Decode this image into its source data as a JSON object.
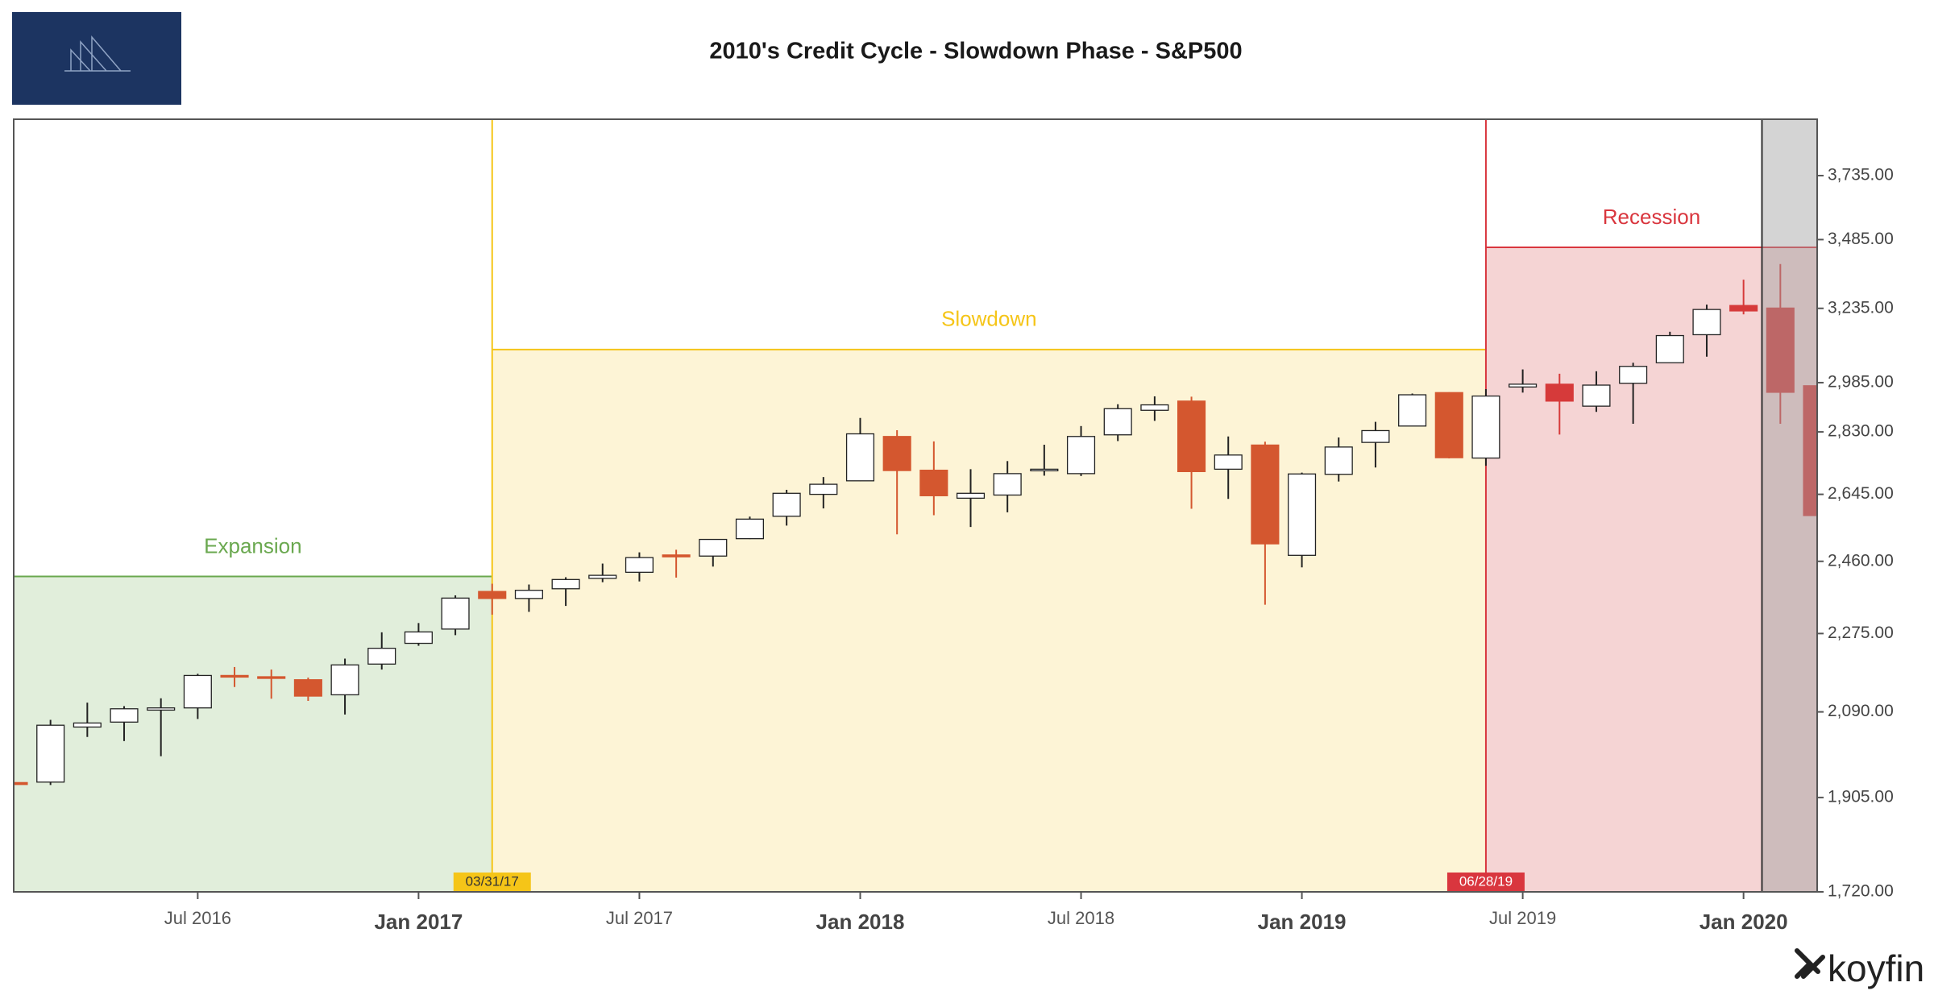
{
  "chart_data": {
    "type": "candlestick",
    "title": "2010's Credit Cycle - Slowdown Phase - S&P500",
    "brand": "koyfin",
    "x": [
      "2016-02",
      "2016-03",
      "2016-04",
      "2016-05",
      "2016-06",
      "2016-07",
      "2016-08",
      "2016-09",
      "2016-10",
      "2016-11",
      "2016-12",
      "2017-01",
      "2017-02",
      "2017-03",
      "2017-04",
      "2017-05",
      "2017-06",
      "2017-07",
      "2017-08",
      "2017-09",
      "2017-10",
      "2017-11",
      "2017-12",
      "2018-01",
      "2018-02",
      "2018-03",
      "2018-04",
      "2018-05",
      "2018-06",
      "2018-07",
      "2018-08",
      "2018-09",
      "2018-10",
      "2018-11",
      "2018-12",
      "2019-01",
      "2019-02",
      "2019-03",
      "2019-04",
      "2019-05",
      "2019-06",
      "2019-07",
      "2019-08",
      "2019-09",
      "2019-10",
      "2019-11",
      "2019-12",
      "2020-01",
      "2020-02",
      "2020-03"
    ],
    "open": [
      1936,
      1937,
      2056,
      2067,
      2094,
      2099,
      2174,
      2171,
      2164,
      2129,
      2201,
      2251,
      2286,
      2381,
      2363,
      2388,
      2415,
      2431,
      2477,
      2474,
      2521,
      2583,
      2645,
      2684,
      2816,
      2715,
      2634,
      2643,
      2718,
      2705,
      2821,
      2897,
      2926,
      2718,
      2790,
      2476,
      2703,
      2798,
      2848,
      2953,
      2751,
      2971,
      2980,
      2910,
      2983,
      3050,
      3144,
      3245,
      3236,
      2975
    ],
    "high": [
      1962,
      2072,
      2111,
      2103,
      2121,
      2178,
      2194,
      2188,
      2169,
      2214,
      2278,
      2301,
      2371,
      2401,
      2399,
      2418,
      2454,
      2484,
      2491,
      2520,
      2582,
      2658,
      2695,
      2873,
      2835,
      2801,
      2718,
      2742,
      2791,
      2848,
      2916,
      2941,
      2940,
      2816,
      2800,
      2708,
      2813,
      2861,
      2950,
      2954,
      2964,
      3028,
      3014,
      3022,
      3050,
      3154,
      3248,
      3337,
      3394,
      3137
    ],
    "low": [
      1810,
      1931,
      2034,
      2025,
      1992,
      2074,
      2147,
      2120,
      2115,
      2084,
      2188,
      2245,
      2271,
      2322,
      2329,
      2344,
      2405,
      2407,
      2417,
      2446,
      2520,
      2557,
      2605,
      2683,
      2533,
      2586,
      2553,
      2594,
      2699,
      2698,
      2802,
      2864,
      2604,
      2632,
      2347,
      2444,
      2682,
      2723,
      2848,
      2750,
      2728,
      2953,
      2822,
      2892,
      2855,
      3050,
      3070,
      3214,
      2855,
      2192
    ],
    "close": [
      1932,
      2060,
      2065,
      2097,
      2099,
      2174,
      2171,
      2168,
      2126,
      2199,
      2239,
      2279,
      2364,
      2363,
      2384,
      2412,
      2423,
      2470,
      2472,
      2519,
      2575,
      2648,
      2674,
      2824,
      2714,
      2641,
      2648,
      2705,
      2718,
      2816,
      2902,
      2914,
      2711,
      2760,
      2507,
      2704,
      2784,
      2834,
      2946,
      2752,
      2942,
      2980,
      2926,
      2977,
      3038,
      3141,
      3231,
      3226,
      2954,
      2585
    ],
    "up_color": "#ffffff",
    "down_color": "#d4572f",
    "log_scale": true,
    "xlim": [
      "2016-02",
      "2020-03"
    ],
    "ylim": [
      1720,
      3970
    ],
    "yticks": [
      {
        "value": 1720,
        "label": "1,720.00"
      },
      {
        "value": 1905,
        "label": "1,905.00"
      },
      {
        "value": 2090,
        "label": "2,090.00"
      },
      {
        "value": 2275,
        "label": "2,275.00"
      },
      {
        "value": 2460,
        "label": "2,460.00"
      },
      {
        "value": 2645,
        "label": "2,645.00"
      },
      {
        "value": 2830,
        "label": "2,830.00"
      },
      {
        "value": 2985,
        "label": "2,985.00"
      },
      {
        "value": 3235,
        "label": "3,235.00"
      },
      {
        "value": 3485,
        "label": "3,485.00"
      },
      {
        "value": 3735,
        "label": "3,735.00"
      }
    ],
    "xticks": [
      {
        "value": "2016-07",
        "label": "Jul 2016"
      },
      {
        "value": "2017-01",
        "label": "Jan 2017"
      },
      {
        "value": "2017-07",
        "label": "Jul 2017"
      },
      {
        "value": "2018-01",
        "label": "Jan 2018"
      },
      {
        "value": "2018-07",
        "label": "Jul 2018"
      },
      {
        "value": "2019-01",
        "label": "Jan 2019"
      },
      {
        "value": "2019-07",
        "label": "Jul 2019"
      },
      {
        "value": "2020-01",
        "label": "Jan 2020"
      }
    ],
    "regions": [
      {
        "label": "Expansion",
        "start": "2016-02",
        "end": "2017-03",
        "level": 2420,
        "color": "#6aa84f",
        "fill": "#e1eedb"
      },
      {
        "label": "Slowdown",
        "start": "2017-03",
        "end": "2019-06",
        "level": 3094,
        "color": "#f5c518",
        "fill": "#fdf4d6",
        "date_label": "03/31/17"
      },
      {
        "label": "Recession",
        "start": "2019-06",
        "end": "2020-03",
        "level": 3456,
        "color": "#d9363e",
        "fill": "#f5d4d4",
        "date_label": "06/28/19",
        "down_color": "#d63a3a"
      }
    ],
    "shade": {
      "start": "2020-02",
      "end": "2020-03",
      "color": "#a0a0a0"
    }
  }
}
